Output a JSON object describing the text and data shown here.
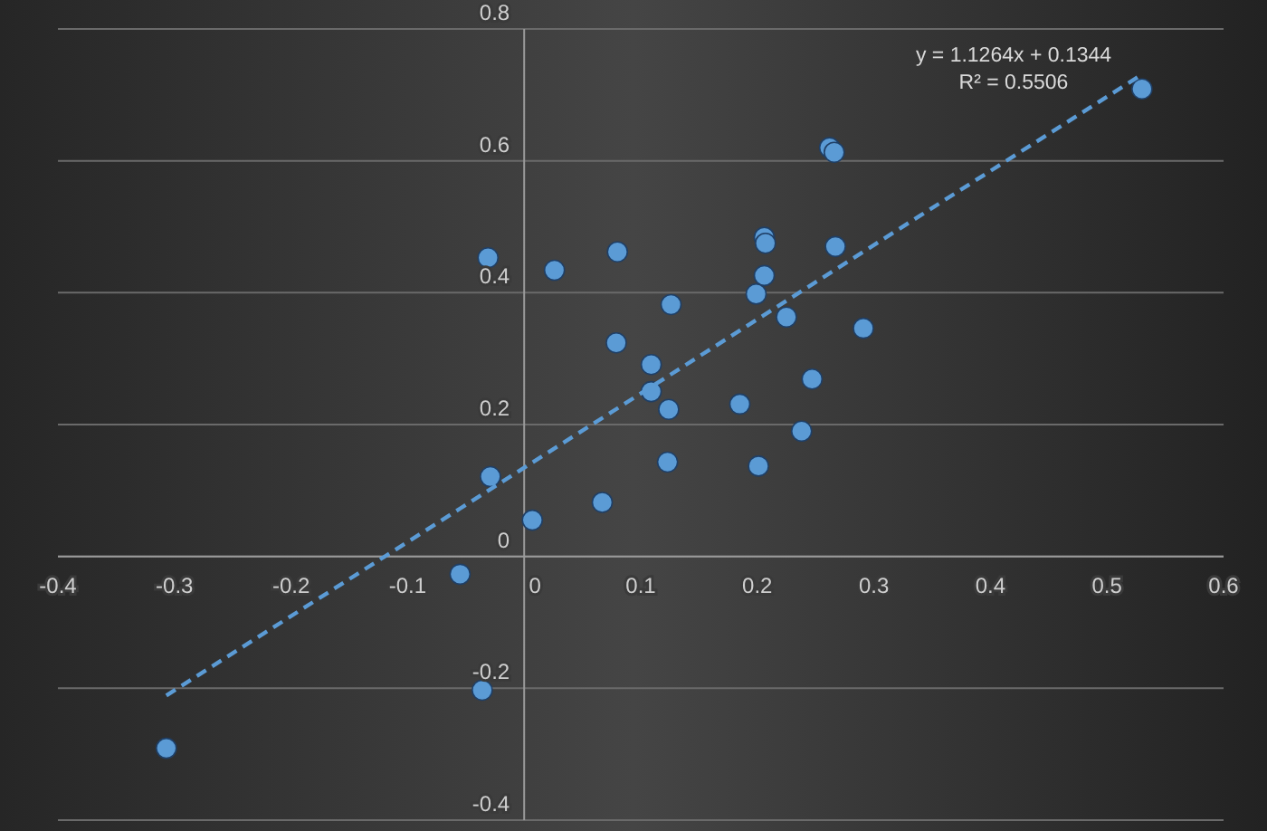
{
  "chart_data": {
    "type": "scatter",
    "xlim": [
      -0.4,
      0.6
    ],
    "ylim": [
      -0.4,
      0.8
    ],
    "xticks": [
      {
        "value": -0.4,
        "label": "-0.4"
      },
      -0.3,
      -0.2,
      -0.1,
      0,
      0.1,
      0.2,
      0.3,
      0.4,
      0.5,
      {
        "value": 0.6,
        "label": "0.6"
      }
    ],
    "yticks": [
      -0.4,
      -0.2,
      0,
      0.2,
      0.4,
      0.6,
      0.8
    ],
    "grid": "y",
    "annotations": [
      "y = 1.1264x + 0.1344",
      "R² = 0.5506"
    ],
    "series": [
      {
        "color": "#5b9bd5",
        "marker": "circle",
        "x": [
          0.53,
          0.262,
          0.266,
          0.206,
          0.207,
          0.267,
          0.206,
          0.199,
          0.225,
          0.291,
          0.247,
          0.185,
          0.238,
          0.201,
          -0.031,
          0.026,
          0.08,
          0.126,
          0.079,
          0.109,
          0.109,
          0.124,
          0.123,
          -0.029,
          0.067,
          0.007,
          -0.055,
          -0.036,
          -0.307
        ],
        "values": [
          0.709,
          0.62,
          0.613,
          0.484,
          0.475,
          0.47,
          0.426,
          0.398,
          0.363,
          0.346,
          0.269,
          0.231,
          0.19,
          0.137,
          0.453,
          0.434,
          0.462,
          0.382,
          0.324,
          0.291,
          0.25,
          0.223,
          0.143,
          0.121,
          0.082,
          0.055,
          -0.027,
          -0.203,
          -0.291
        ]
      },
      {
        "type": "line",
        "color": "#5b9bd5",
        "line_style": "dashed",
        "marker": "none",
        "x": [
          -0.307,
          0.53
        ],
        "values": [
          -0.211,
          0.731
        ]
      }
    ]
  }
}
